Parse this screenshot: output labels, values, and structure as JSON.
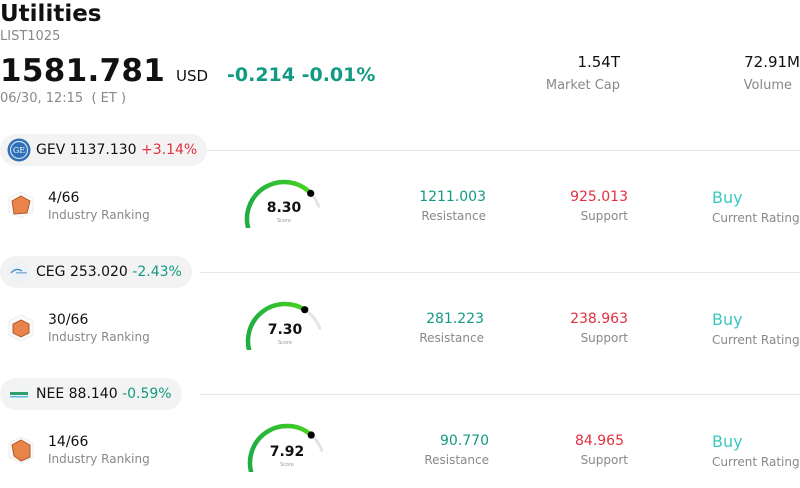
{
  "header": {
    "title": "Utilities",
    "code": "LIST1025",
    "price": "1581.781",
    "currency": "USD",
    "change": "-0.214",
    "change_pct": "-0.01%",
    "timestamp": "06/30, 12:15  ( ET )",
    "market_cap_value": "1.54T",
    "market_cap_label": "Market Cap",
    "volume_value": "72.91M",
    "volume_label": "Volume"
  },
  "colors": {
    "positive": "#e0313f",
    "negative": "#129a82",
    "rating": "#3cc8c2",
    "gauge_track": "#e3e3ea"
  },
  "stocks": [
    {
      "symbol": "GEV",
      "price": "1137.130",
      "change": "+3.14%",
      "logo_icon": "ge-vernova-logo-icon",
      "rank": "4/66",
      "rank_label": "Industry Ranking",
      "score": "8.30",
      "score_value": 8.3,
      "score_label": "Score",
      "resistance": "1211.003",
      "resistance_label": "Resistance",
      "support": "925.013",
      "support_label": "Support",
      "rating": "Buy",
      "rating_label": "Current Rating"
    },
    {
      "symbol": "CEG",
      "price": "253.020",
      "change": "-2.43%",
      "logo_icon": "constellation-logo-icon",
      "rank": "30/66",
      "rank_label": "Industry Ranking",
      "score": "7.30",
      "score_value": 7.3,
      "score_label": "Score",
      "resistance": "281.223",
      "resistance_label": "Resistance",
      "support": "238.963",
      "support_label": "Support",
      "rating": "Buy",
      "rating_label": "Current Rating"
    },
    {
      "symbol": "NEE",
      "price": "88.140",
      "change": "-0.59%",
      "logo_icon": "nextera-logo-icon",
      "rank": "14/66",
      "rank_label": "Industry Ranking",
      "score": "7.92",
      "score_value": 7.92,
      "score_label": "Score",
      "resistance": "90.770",
      "resistance_label": "Resistance",
      "support": "84.965",
      "support_label": "Support",
      "rating": "Buy",
      "rating_label": "Current Rating"
    }
  ]
}
